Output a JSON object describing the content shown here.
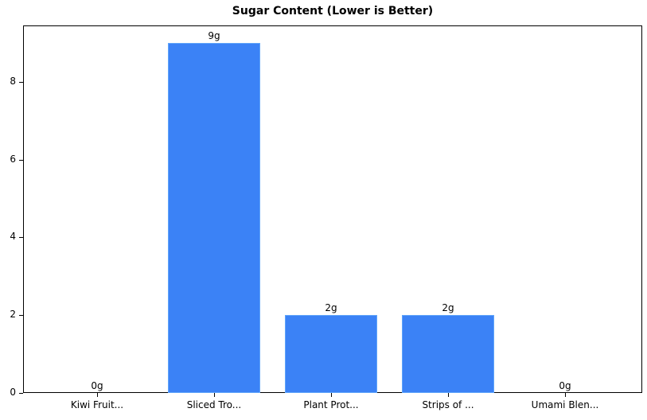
{
  "chart_data": {
    "type": "bar",
    "title": "Sugar Content (Lower is Better)",
    "xlabel": "",
    "ylabel": "",
    "categories": [
      "Kiwi Fruit...",
      "Sliced Tro...",
      "Plant Prot...",
      "Strips of ...",
      "Umami Blen..."
    ],
    "values": [
      0,
      9,
      2,
      2,
      0
    ],
    "value_labels": [
      "0g",
      "9g",
      "2g",
      "2g",
      "0g"
    ],
    "ylim": [
      0,
      9.45
    ],
    "yticks": [
      0,
      2,
      4,
      6,
      8
    ],
    "grid": false,
    "bar_color": "#3b82f6",
    "bar_edge_color": "#60a5fa"
  }
}
